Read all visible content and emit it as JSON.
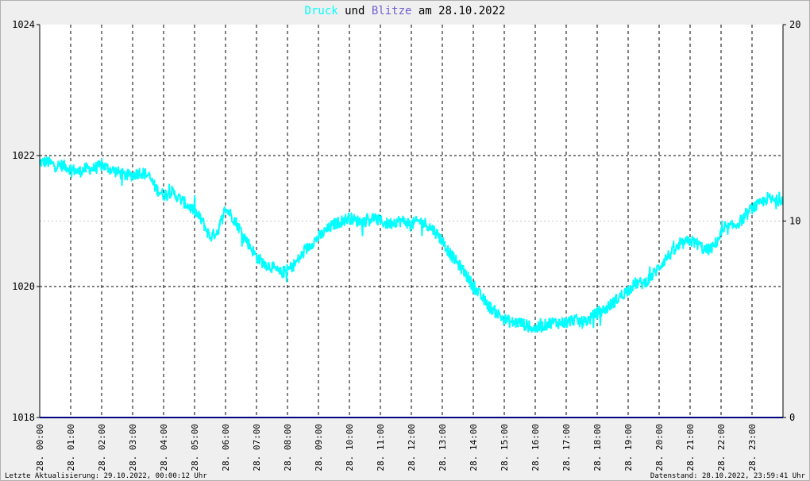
{
  "chart_data": {
    "type": "line",
    "title": {
      "word1": "Druck",
      "word2": "und",
      "word3": "Blitze",
      "word4": "am 28.10.2022"
    },
    "colors": {
      "druck": "#00ffff",
      "blitze": "#000080",
      "title_neutral": "#000000",
      "blitze_title": "#6f5fd0",
      "grid": "#000000",
      "plot_background": "#ffffff"
    },
    "y_left": {
      "ticks": [
        "1024",
        "1022",
        "1020",
        "1018"
      ],
      "range": [
        1018,
        1024
      ]
    },
    "y_right": {
      "ticks": [
        "20",
        "10",
        "0"
      ],
      "range": [
        0,
        20
      ]
    },
    "x_labels": [
      "28. 00:00",
      "28. 01:00",
      "28. 02:00",
      "28. 03:00",
      "28. 04:00",
      "28. 05:00",
      "28. 06:00",
      "28. 07:00",
      "28. 08:00",
      "28. 09:00",
      "28. 10:00",
      "28. 11:00",
      "28. 12:00",
      "28. 13:00",
      "28. 14:00",
      "28. 15:00",
      "28. 16:00",
      "28. 17:00",
      "28. 18:00",
      "28. 19:00",
      "28. 20:00",
      "28. 21:00",
      "28. 22:00",
      "28. 23:00"
    ],
    "x_range_hours": [
      0,
      24
    ],
    "series": [
      {
        "name": "Druck",
        "axis": "left",
        "x_hours": [
          0,
          0.25,
          0.5,
          0.75,
          1,
          1.25,
          1.5,
          1.75,
          2,
          2.25,
          2.5,
          2.75,
          3,
          3.25,
          3.5,
          3.75,
          4,
          4.25,
          4.5,
          4.75,
          5,
          5.25,
          5.5,
          5.75,
          6,
          6.25,
          6.5,
          6.75,
          7,
          7.25,
          7.5,
          7.75,
          8,
          8.25,
          8.5,
          8.75,
          9,
          9.25,
          9.5,
          9.75,
          10,
          10.25,
          10.5,
          10.75,
          11,
          11.25,
          11.5,
          11.75,
          12,
          12.25,
          12.5,
          12.75,
          13,
          13.25,
          13.5,
          13.75,
          14,
          14.25,
          14.5,
          14.75,
          15,
          15.25,
          15.5,
          15.75,
          16,
          16.25,
          16.5,
          16.75,
          17,
          17.25,
          17.5,
          17.75,
          18,
          18.25,
          18.5,
          18.75,
          19,
          19.25,
          19.5,
          19.75,
          20,
          20.25,
          20.5,
          20.75,
          21,
          21.25,
          21.5,
          21.75,
          22,
          22.25,
          22.5,
          22.75,
          23,
          23.25,
          23.5,
          23.75,
          24
        ],
        "values": [
          1021.9,
          1021.9,
          1021.85,
          1021.85,
          1021.8,
          1021.75,
          1021.8,
          1021.8,
          1021.85,
          1021.8,
          1021.75,
          1021.7,
          1021.7,
          1021.75,
          1021.7,
          1021.5,
          1021.4,
          1021.45,
          1021.35,
          1021.25,
          1021.15,
          1021.0,
          1020.75,
          1020.85,
          1021.2,
          1021.05,
          1020.85,
          1020.65,
          1020.45,
          1020.35,
          1020.3,
          1020.2,
          1020.25,
          1020.35,
          1020.5,
          1020.65,
          1020.75,
          1020.85,
          1020.95,
          1021.0,
          1021.05,
          1021.0,
          1021.0,
          1021.05,
          1021.0,
          1020.95,
          1021.0,
          1021.0,
          1020.95,
          1021.0,
          1020.95,
          1020.85,
          1020.7,
          1020.5,
          1020.35,
          1020.2,
          1020.0,
          1019.85,
          1019.7,
          1019.6,
          1019.5,
          1019.45,
          1019.45,
          1019.4,
          1019.35,
          1019.4,
          1019.45,
          1019.45,
          1019.45,
          1019.5,
          1019.45,
          1019.5,
          1019.6,
          1019.65,
          1019.75,
          1019.85,
          1019.95,
          1020.05,
          1020.05,
          1020.15,
          1020.3,
          1020.45,
          1020.55,
          1020.65,
          1020.7,
          1020.65,
          1020.55,
          1020.6,
          1020.8,
          1020.9,
          1020.95,
          1021.05,
          1021.2,
          1021.25,
          1021.35,
          1021.3,
          1021.35
        ]
      },
      {
        "name": "Blitze",
        "axis": "right",
        "x_hours": [
          0,
          24
        ],
        "values": [
          0,
          0
        ]
      }
    ],
    "grid": true
  },
  "footer": {
    "left": "Letzte Aktualisierung: 29.10.2022, 00:00:12 Uhr",
    "right": "Datenstand: 28.10.2022, 23:59:41 Uhr"
  }
}
